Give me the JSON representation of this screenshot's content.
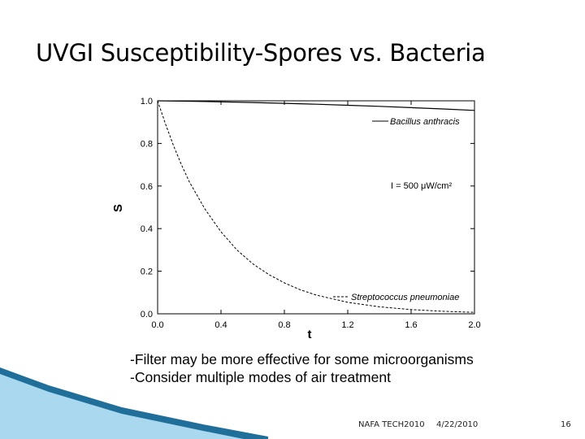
{
  "slide": {
    "title": "UVGI Susceptibility-Spores vs. Bacteria",
    "bullets": [
      "-Filter may be more effective for some microorganisms",
      "-Consider multiple modes of air treatment"
    ],
    "footer": {
      "left": "NAFA TECH2010",
      "date": "4/22/2010",
      "page": "16"
    }
  },
  "colors": {
    "decor_dark": "#1f6f9a",
    "decor_light": "#a9d8ef"
  },
  "chart_data": {
    "type": "line",
    "title": "",
    "xlabel": "t",
    "ylabel": "S",
    "xlim": [
      0,
      2
    ],
    "ylim": [
      0,
      1
    ],
    "xticks": [
      "0.0",
      "0.4",
      "0.8",
      "1.2",
      "1.6",
      "2.0"
    ],
    "yticks": [
      "0.0",
      "0.2",
      "0.4",
      "0.6",
      "0.8",
      "1.0"
    ],
    "annotation": "I = 500 μW/cm²",
    "legend_placement": "inline labels",
    "series": [
      {
        "name": "Bacillus anthracis",
        "style": "solid",
        "x": [
          0,
          0.2,
          0.4,
          0.6,
          0.8,
          1.0,
          1.2,
          1.4,
          1.6,
          1.8,
          2.0
        ],
        "y": [
          1.0,
          0.998,
          0.995,
          0.992,
          0.988,
          0.984,
          0.979,
          0.974,
          0.968,
          0.962,
          0.955
        ]
      },
      {
        "name": "Streptococcus pneumoniae",
        "style": "dashed",
        "x": [
          0,
          0.05,
          0.1,
          0.15,
          0.2,
          0.3,
          0.4,
          0.5,
          0.6,
          0.7,
          0.8,
          0.9,
          1.0,
          1.2,
          1.4,
          1.6,
          1.8,
          2.0
        ],
        "y": [
          1.0,
          0.89,
          0.79,
          0.7,
          0.62,
          0.49,
          0.385,
          0.3,
          0.235,
          0.185,
          0.145,
          0.113,
          0.088,
          0.054,
          0.033,
          0.02,
          0.012,
          0.007
        ]
      }
    ]
  }
}
